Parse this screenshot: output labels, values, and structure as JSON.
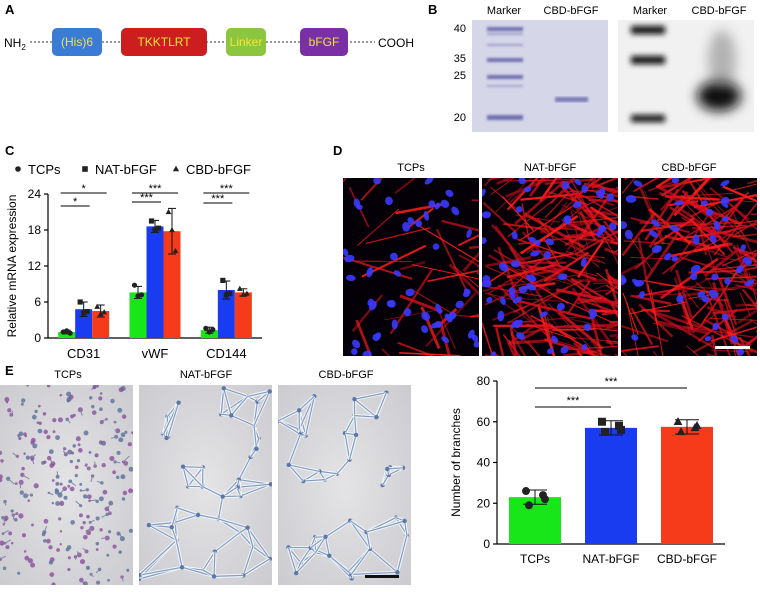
{
  "panel_labels": {
    "a": "A",
    "b": "B",
    "c": "C",
    "d": "D",
    "e": "E"
  },
  "panel_a": {
    "n_term": "NH",
    "n_term_sub": "2",
    "c_term": "COOH",
    "domains": [
      {
        "label": "(His)6",
        "fill": "#3a7bd5",
        "text": "#f2e43a"
      },
      {
        "label": "TKKTLRT",
        "fill": "#cc1e1e",
        "text": "#f2e43a"
      },
      {
        "label": "Linker",
        "fill": "#8cc63f",
        "text": "#f2e43a"
      },
      {
        "label": "bFGF",
        "fill": "#7b2fa6",
        "text": "#f2e43a"
      }
    ]
  },
  "panel_b": {
    "marker_kda": [
      "40",
      "35",
      "25",
      "20"
    ],
    "gel_lanes": [
      "Marker",
      "CBD-bFGF"
    ],
    "blot_lanes": [
      "Marker",
      "CBD-bFGF"
    ]
  },
  "chart_data": [
    {
      "type": "bar",
      "panel": "C",
      "ylabel": "Relative mRNA expression",
      "categories": [
        "CD31",
        "vWF",
        "CD144"
      ],
      "ylim": [
        0,
        24
      ],
      "yticks": [
        0,
        6,
        12,
        18,
        24
      ],
      "legend_position": "top",
      "series": [
        {
          "name": "TCPs",
          "marker": "●",
          "color": "#19e619",
          "values": [
            1.0,
            7.6,
            1.3
          ],
          "errors": [
            0.3,
            1.0,
            0.5
          ],
          "points": [
            [
              1.0,
              1.2,
              0.8
            ],
            [
              8.8,
              7.0,
              7.2
            ],
            [
              1.6,
              1.0,
              1.4
            ]
          ]
        },
        {
          "name": "NAT-bFGF",
          "marker": "■",
          "color": "#1a3cf0",
          "values": [
            4.8,
            18.6,
            8.0
          ],
          "errors": [
            1.2,
            1.0,
            1.5
          ],
          "points": [
            [
              6.0,
              4.2,
              4.4
            ],
            [
              19.5,
              18.0,
              18.3
            ],
            [
              9.6,
              7.2,
              7.4
            ]
          ]
        },
        {
          "name": "CBD-bFGF",
          "marker": "▲",
          "color": "#f53b1a",
          "values": [
            4.5,
            17.8,
            7.6
          ],
          "errors": [
            1.0,
            3.8,
            0.6
          ],
          "points": [
            [
              5.2,
              4.0,
              4.3
            ],
            [
              21.0,
              18.0,
              14.5
            ],
            [
              8.2,
              7.2,
              7.4
            ]
          ]
        }
      ],
      "significance": [
        {
          "category": "CD31",
          "pair": [
            "TCPs",
            "CBD-bFGF"
          ],
          "label": "*"
        },
        {
          "category": "CD31",
          "pair": [
            "TCPs",
            "NAT-bFGF"
          ],
          "label": "*"
        },
        {
          "category": "vWF",
          "pair": [
            "TCPs",
            "CBD-bFGF"
          ],
          "label": "***"
        },
        {
          "category": "vWF",
          "pair": [
            "TCPs",
            "NAT-bFGF"
          ],
          "label": "***"
        },
        {
          "category": "CD144",
          "pair": [
            "TCPs",
            "CBD-bFGF"
          ],
          "label": "***"
        },
        {
          "category": "CD144",
          "pair": [
            "TCPs",
            "NAT-bFGF"
          ],
          "label": "***"
        }
      ]
    },
    {
      "type": "bar",
      "panel": "E",
      "ylabel": "Number of branches",
      "categories": [
        "TCPs",
        "NAT-bFGF",
        "CBD-bFGF"
      ],
      "ylim": [
        0,
        80
      ],
      "yticks": [
        0,
        20,
        40,
        60,
        80
      ],
      "colors": [
        "#19e619",
        "#1a3cf0",
        "#f53b1a"
      ],
      "markers": [
        "●",
        "■",
        "▲"
      ],
      "values": [
        23,
        57,
        57.5
      ],
      "errors": [
        3.5,
        3.5,
        3.5
      ],
      "points": [
        [
          26,
          24,
          19,
          22
        ],
        [
          60,
          58,
          55,
          56
        ],
        [
          60,
          57,
          55,
          58
        ]
      ],
      "significance": [
        {
          "pair": [
            "TCPs",
            "NAT-bFGF"
          ],
          "label": "***"
        },
        {
          "pair": [
            "TCPs",
            "CBD-bFGF"
          ],
          "label": "***"
        }
      ]
    }
  ],
  "panel_d": {
    "titles": [
      "TCPs",
      "NAT-bFGF",
      "CBD-bFGF"
    ]
  },
  "panel_e_images": {
    "titles": [
      "TCPs",
      "NAT-bFGF",
      "CBD-bFGF"
    ]
  }
}
